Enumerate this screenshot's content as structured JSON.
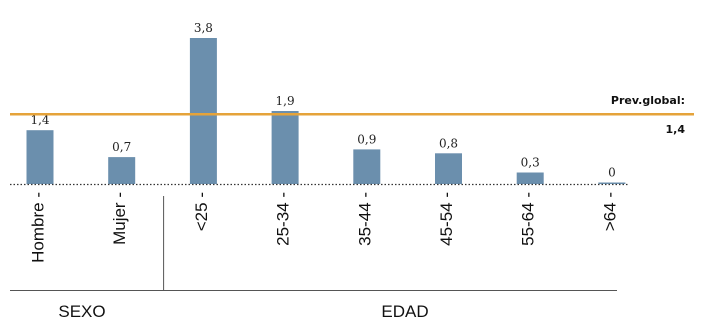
{
  "chart_data": {
    "type": "bar",
    "title": "",
    "xlabel": "",
    "ylabel": "",
    "categories": [
      "Hombre",
      "Mujer",
      "<25",
      "25-34",
      "35-44",
      "45-54",
      "55-64",
      ">64"
    ],
    "values": [
      1.4,
      0.7,
      3.8,
      1.9,
      0.9,
      0.8,
      0.3,
      0
    ],
    "value_labels": [
      "1,4",
      "0,7",
      "3,8",
      "1,9",
      "0,9",
      "0,8",
      "0,3",
      "0"
    ],
    "groups": [
      {
        "label": "SEXO",
        "categories": [
          "Hombre",
          "Mujer"
        ]
      },
      {
        "label": "EDAD",
        "categories": [
          "<25",
          "25-34",
          "35-44",
          "45-54",
          "55-64",
          ">64"
        ]
      }
    ],
    "reference_line": {
      "label": "Prev.global:",
      "value": 1.4,
      "value_label": "1,4",
      "color": "#e5a33a"
    },
    "ylim": [
      0,
      3.8
    ],
    "bar_color": "#6b8fad",
    "grid": false
  }
}
